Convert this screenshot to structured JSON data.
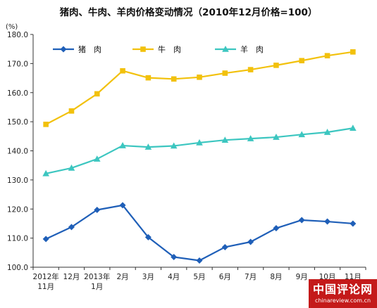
{
  "title": "猪肉、牛肉、羊肉价格变动情况（2010年12月价格=100）",
  "unit": "(%)",
  "watermark": {
    "main": "中国评论网",
    "sub": "chinareview.com.cn"
  },
  "chart_data": {
    "type": "line",
    "title": "猪肉、牛肉、羊肉价格变动情况（2010年12月价格=100）",
    "ylabel": "(%)",
    "ylim": [
      100,
      180
    ],
    "yticks": [
      "100.0",
      "110.0",
      "120.0",
      "130.0",
      "140.0",
      "150.0",
      "160.0",
      "170.0",
      "180.0"
    ],
    "categories": [
      [
        "2012年",
        "11月"
      ],
      [
        "12月"
      ],
      [
        "2013年",
        "1月"
      ],
      [
        "2月"
      ],
      [
        "3月"
      ],
      [
        "4月"
      ],
      [
        "5月"
      ],
      [
        "6月"
      ],
      [
        "7月"
      ],
      [
        "8月"
      ],
      [
        "9月"
      ],
      [
        "10月"
      ],
      [
        "11月"
      ]
    ],
    "legend_position": "top",
    "grid": false,
    "series": [
      {
        "name": "猪　肉",
        "color": "#1f5fb8",
        "marker": "diamond",
        "values": [
          109.7,
          113.8,
          119.7,
          121.3,
          110.3,
          103.5,
          102.3,
          106.9,
          108.7,
          113.4,
          116.2,
          115.7,
          115.0
        ]
      },
      {
        "name": "牛　肉",
        "color": "#f2c10c",
        "marker": "square",
        "values": [
          149.1,
          153.7,
          159.6,
          167.5,
          165.1,
          164.7,
          165.3,
          166.7,
          167.9,
          169.4,
          171.0,
          172.7,
          174.0
        ]
      },
      {
        "name": "羊　肉",
        "color": "#3cc6c0",
        "marker": "triangle",
        "values": [
          132.2,
          134.1,
          137.2,
          141.8,
          141.3,
          141.7,
          142.8,
          143.7,
          144.2,
          144.7,
          145.6,
          146.4,
          147.8
        ]
      }
    ]
  }
}
